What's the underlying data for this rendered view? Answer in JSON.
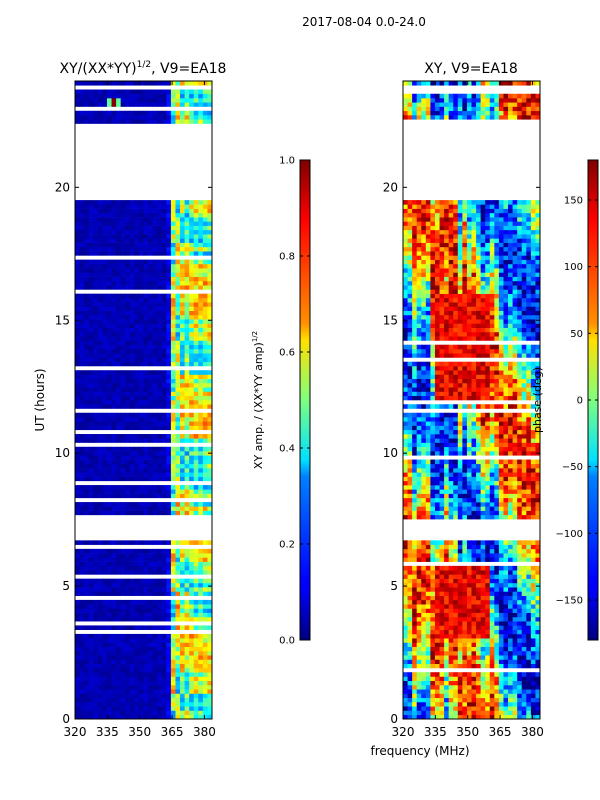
{
  "suptitle": "2017-08-04 0.0-24.0",
  "colors": {
    "background": "#ffffff",
    "axes": "#000000",
    "jet_low": "#00007f",
    "jet_high": "#7f0000"
  },
  "chart_data": [
    {
      "type": "heatmap",
      "title": "XY/(XX*YY)^1/2, V9=EA18",
      "title_main": "XY/(XX*YY)",
      "title_sup": "1/2",
      "title_tail": ", V9=EA18",
      "xlabel": "",
      "ylabel": "UT (hours)",
      "xlim": [
        320,
        383.5
      ],
      "ylim": [
        0,
        24
      ],
      "xticks": [
        320,
        335,
        350,
        365,
        380
      ],
      "yticks": [
        0,
        5,
        10,
        15,
        20
      ],
      "value_range": [
        0.0,
        1.0
      ],
      "colormap": "jet",
      "colorbar": {
        "label": "XY amp. / (XX*YY amp)^1/2",
        "label_main": "XY amp. / (XX*YY amp)",
        "label_sup": "1/2",
        "range": [
          0.0,
          1.0
        ],
        "ticks": [
          "0.0",
          "0.2",
          "0.4",
          "0.6",
          "0.8",
          "1.0"
        ]
      },
      "data_gaps_hours": [
        [
          19.6,
          22.4
        ],
        [
          6.7,
          7.5
        ]
      ],
      "notes": "Low amplitude (~0.0-0.1) below 362 MHz; structured 0.3-0.9 amplitudes between 362 and 383 MHz; spike near 338 MHz at 23.1 h"
    },
    {
      "type": "heatmap",
      "title": "XY, V9=EA18",
      "xlabel": "frequency (MHz)",
      "ylabel": "",
      "xlim": [
        320,
        383.5
      ],
      "ylim": [
        0,
        24
      ],
      "xticks": [
        320,
        335,
        350,
        365,
        380
      ],
      "yticks": [
        0,
        5,
        10,
        15,
        20
      ],
      "value_range": [
        -180,
        180
      ],
      "colormap": "jet",
      "colorbar": {
        "label": "phase (deg)",
        "range": [
          -180,
          180
        ],
        "ticks": [
          "−150",
          "−100",
          "−50",
          "0",
          "50",
          "100",
          "150"
        ]
      },
      "data_gaps_hours": [
        [
          19.6,
          22.4
        ],
        [
          6.7,
          7.5
        ]
      ],
      "notes": "Phase varies widely across full band; red (~+150) clusters near 335-360 MHz at 12-16 h and 3-6 h"
    }
  ]
}
